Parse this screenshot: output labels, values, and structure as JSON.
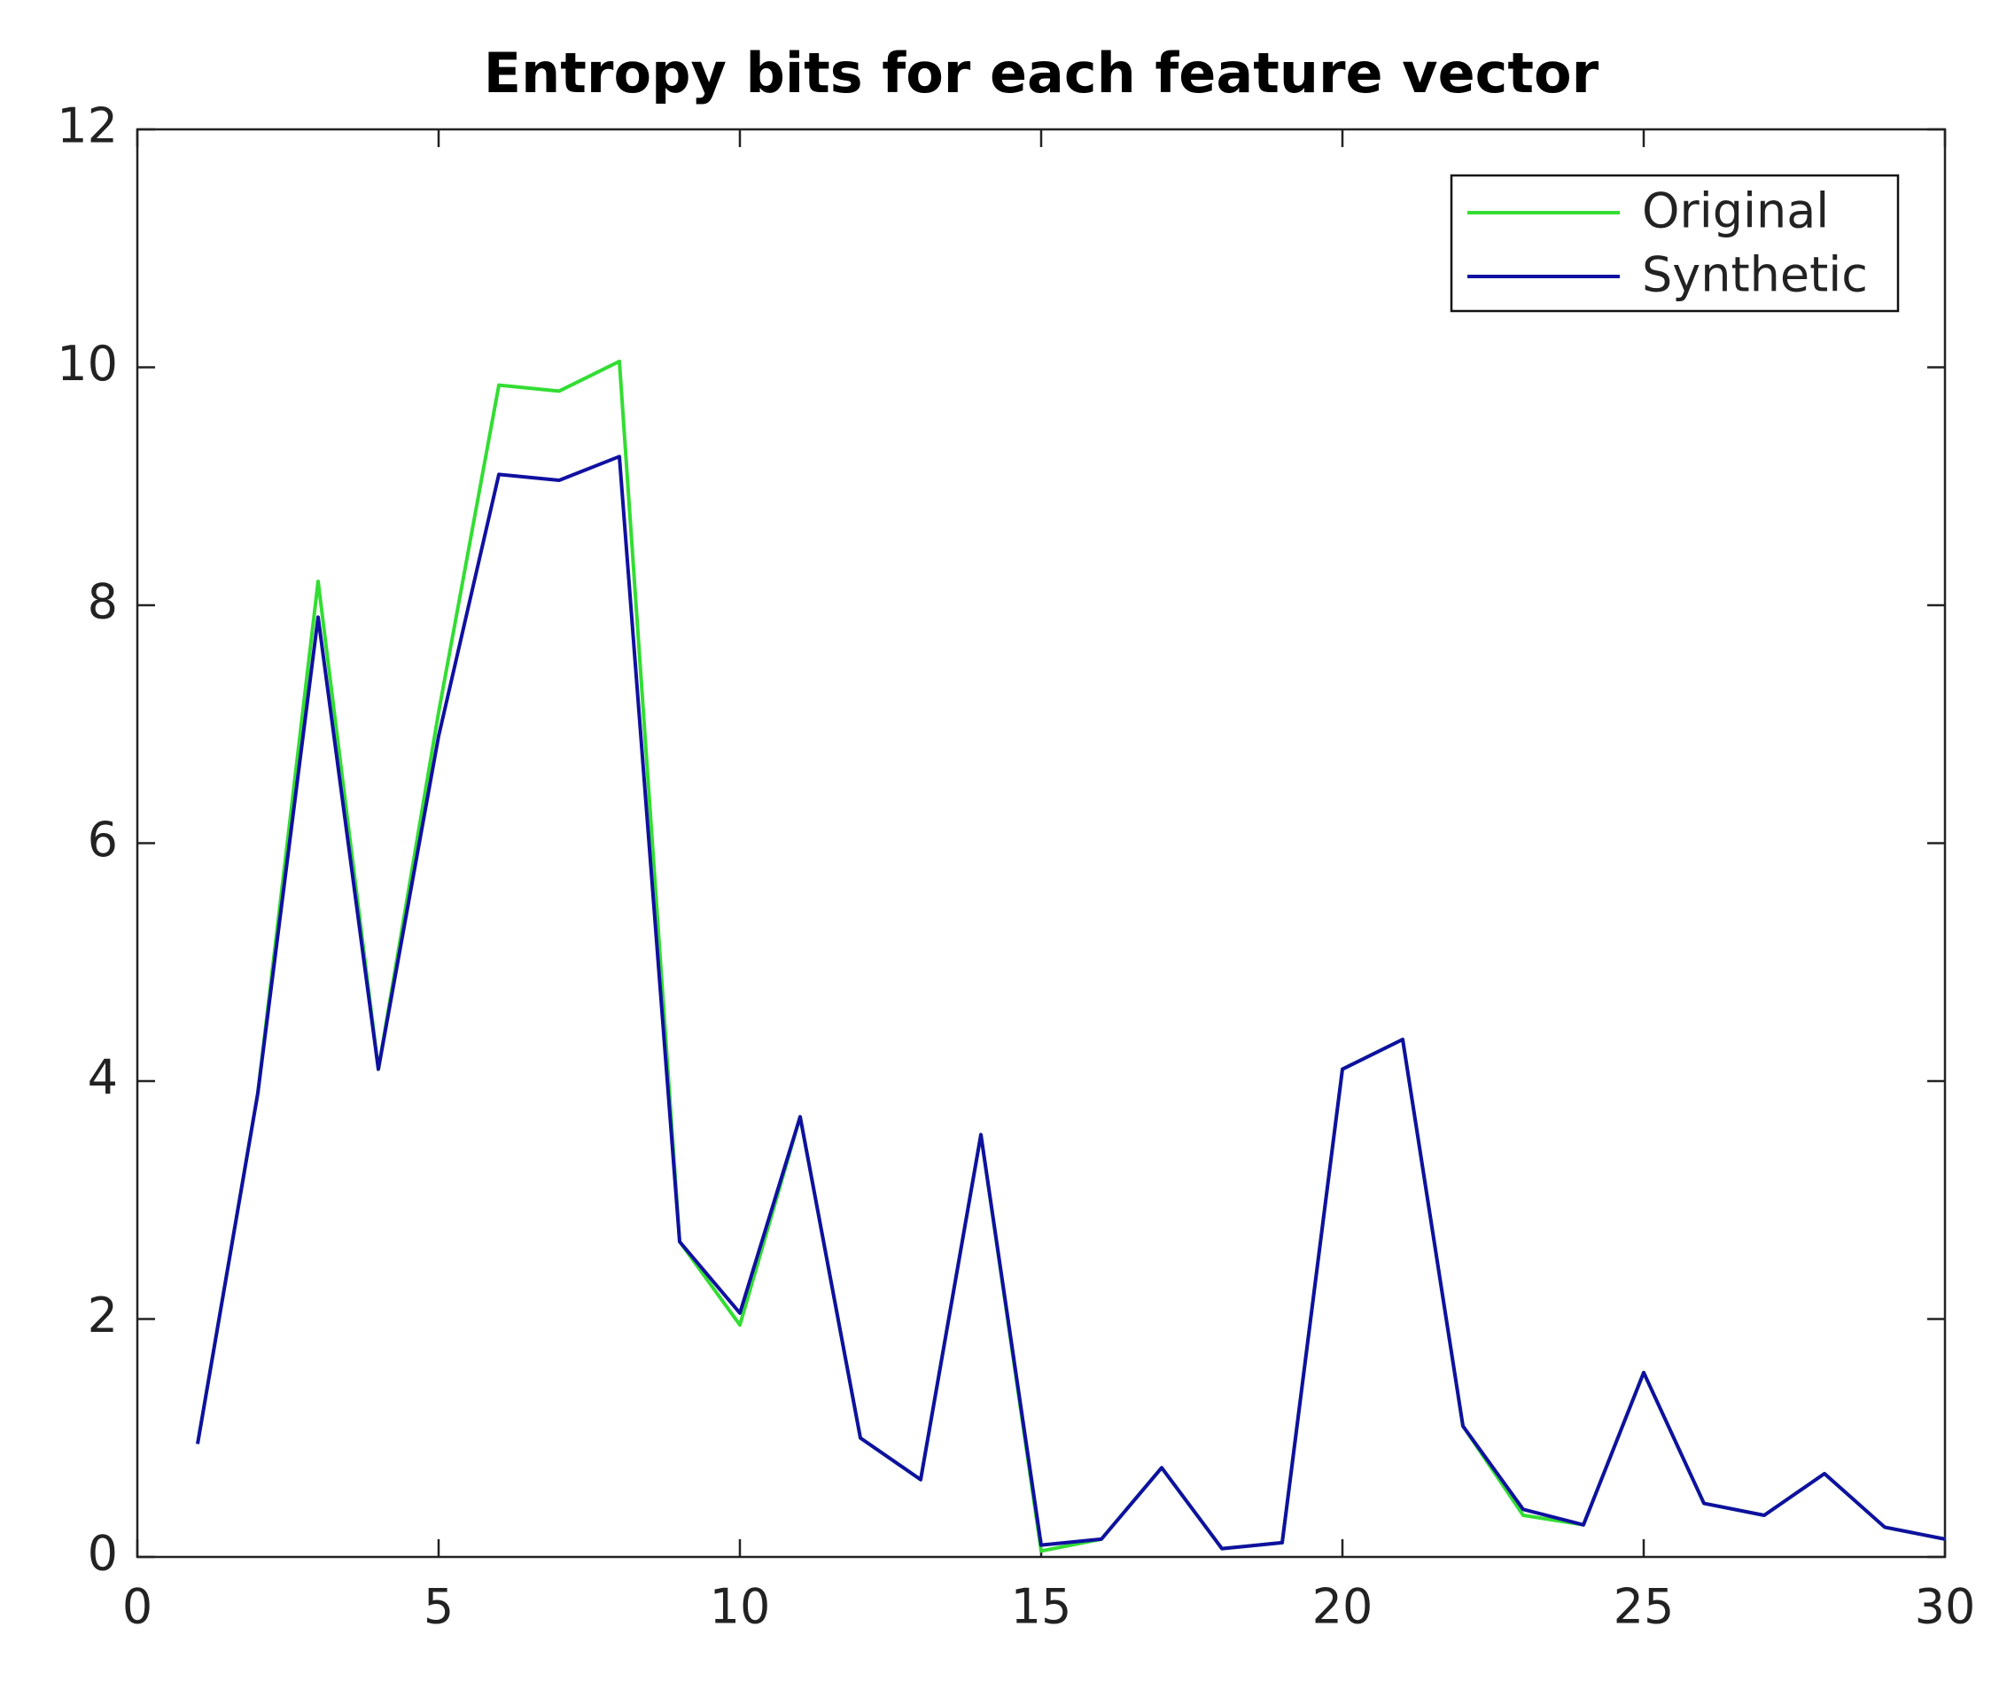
{
  "chart_data": {
    "type": "line",
    "title": "Entropy bits for each feature vector",
    "x": [
      1,
      2,
      3,
      4,
      5,
      6,
      7,
      8,
      9,
      10,
      11,
      12,
      13,
      14,
      15,
      16,
      17,
      18,
      19,
      20,
      21,
      22,
      23,
      24,
      25,
      26,
      27,
      28,
      29,
      30
    ],
    "series": [
      {
        "name": "Original",
        "color": "#33dd33",
        "values": [
          0.95,
          3.9,
          8.2,
          4.1,
          7.1,
          9.85,
          9.8,
          10.05,
          2.65,
          1.95,
          3.7,
          1.0,
          0.65,
          3.55,
          0.05,
          0.15,
          0.75,
          0.07,
          0.12,
          4.1,
          4.35,
          1.1,
          0.35,
          0.27,
          1.55,
          0.45,
          0.35,
          0.7,
          0.25,
          0.15
        ]
      },
      {
        "name": "Synthetic",
        "color": "#1010a0",
        "values": [
          0.95,
          3.9,
          7.9,
          4.1,
          6.9,
          9.1,
          9.05,
          9.25,
          2.65,
          2.05,
          3.7,
          1.0,
          0.65,
          3.55,
          0.1,
          0.15,
          0.75,
          0.07,
          0.12,
          4.1,
          4.35,
          1.1,
          0.4,
          0.27,
          1.55,
          0.45,
          0.35,
          0.7,
          0.25,
          0.15
        ]
      }
    ],
    "xlim": [
      0,
      30
    ],
    "xticks": [
      0,
      5,
      10,
      15,
      20,
      25,
      30
    ],
    "ylim": [
      0,
      12
    ],
    "yticks": [
      0,
      2,
      4,
      6,
      8,
      10,
      12
    ],
    "grid": false,
    "legend": "top-right"
  }
}
